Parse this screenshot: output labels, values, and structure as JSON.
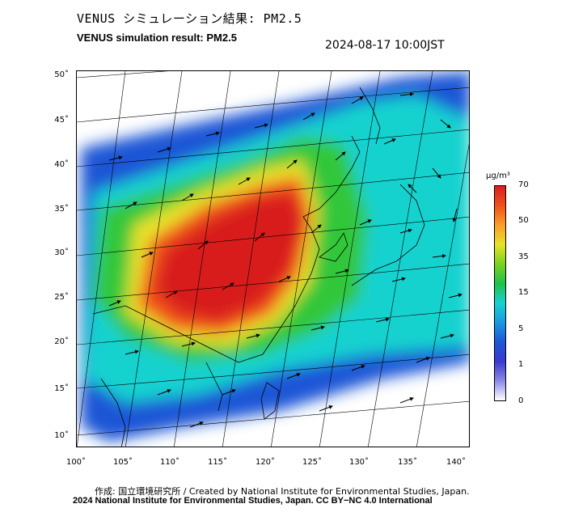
{
  "title_ja": "VENUS シミュレーション結果: PM2.5",
  "title_en": "VENUS simulation result: PM2.5",
  "timestamp": "2024-08-17 10:00JST",
  "map": {
    "lat_labels": [
      "50˚",
      "45˚",
      "40˚",
      "35˚",
      "30˚",
      "25˚",
      "20˚",
      "15˚",
      "10˚"
    ],
    "lon_labels": [
      "100˚",
      "105˚",
      "110˚",
      "115˚",
      "120˚",
      "125˚",
      "130˚",
      "135˚",
      "140˚"
    ],
    "variable": "PM2.5",
    "overlay": "wind vectors"
  },
  "colorbar": {
    "unit": "µg/m³",
    "ticks": [
      "70",
      "50",
      "35",
      "15",
      "5",
      "1",
      "0"
    ],
    "colors": [
      "#d81f1f",
      "#f0511a",
      "#f99e2a",
      "#e9e22a",
      "#7ad21f",
      "#1fc14a",
      "#16d2cf",
      "#1a9ae0",
      "#1d56d6",
      "#3a3ad0",
      "#8a8ae6",
      "#ffffff"
    ]
  },
  "credit": "作成: 国立環境研究所 / Created by National Institute for Environmental Studies, Japan.",
  "license": "2024 National Institute for Environmental Studies, Japan. CC BY−NC 4.0 International"
}
